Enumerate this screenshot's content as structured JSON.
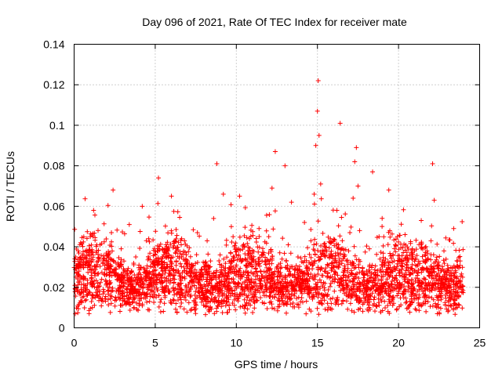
{
  "chart_data": {
    "type": "scatter",
    "title": "Day 096 of 2021, Rate Of TEC Index for receiver mate",
    "xlabel": "GPS time / hours",
    "ylabel": "ROTI / TECUs",
    "xlim": [
      0,
      25
    ],
    "ylim": [
      0,
      0.14
    ],
    "x_ticks": [
      0,
      5,
      10,
      15,
      20,
      25
    ],
    "x_tick_labels": [
      "0",
      "5",
      "10",
      "15",
      "20",
      "25"
    ],
    "y_ticks": [
      0,
      0.02,
      0.04,
      0.06,
      0.08,
      0.1,
      0.12,
      0.14
    ],
    "y_tick_labels": [
      "0",
      "0.02",
      "0.04",
      "0.06",
      "0.08",
      "0.1",
      "0.12",
      "0.14"
    ],
    "grid": true,
    "marker": "+",
    "marker_color": "#ff0000",
    "series": [
      {
        "name": "ROTI",
        "x": [
          0.05,
          0.1,
          0.2,
          0.3,
          0.4,
          0.5,
          0.6,
          0.7,
          0.8,
          0.9,
          1.0,
          1.1,
          1.2,
          1.3,
          1.4,
          1.5,
          1.6,
          1.7,
          1.8,
          1.9,
          2.0,
          2.1,
          2.2,
          2.3,
          2.4,
          2.5,
          2.6,
          2.7,
          2.8,
          2.9,
          3.0,
          3.2,
          3.4,
          3.6,
          3.8,
          4.0,
          4.2,
          4.4,
          4.6,
          4.8,
          5.0,
          5.2,
          5.4,
          5.6,
          5.8,
          6.0,
          6.2,
          6.4,
          6.6,
          6.8,
          7.0,
          7.2,
          7.4,
          7.6,
          7.8,
          8.0,
          8.2,
          8.4,
          8.6,
          8.8,
          9.0,
          9.2,
          9.4,
          9.6,
          9.8,
          10.0,
          10.2,
          10.4,
          10.6,
          10.8,
          11.0,
          11.2,
          11.4,
          11.6,
          11.8,
          12.0,
          12.2,
          12.4,
          12.6,
          12.8,
          13.0,
          13.2,
          13.4,
          13.6,
          13.8,
          14.0,
          14.2,
          14.4,
          14.6,
          14.8,
          14.9,
          15.0,
          15.05,
          15.1,
          15.2,
          15.4,
          15.6,
          15.8,
          16.0,
          16.2,
          16.4,
          16.6,
          16.8,
          17.0,
          17.2,
          17.3,
          17.4,
          17.5,
          17.6,
          17.8,
          18.0,
          18.2,
          18.4,
          18.6,
          18.8,
          19.0,
          19.2,
          19.4,
          19.6,
          19.8,
          20.0,
          20.2,
          20.4,
          20.6,
          20.8,
          21.0,
          21.2,
          21.4,
          21.6,
          21.8,
          22.0,
          22.1,
          22.2,
          22.4,
          22.6,
          22.8,
          23.0,
          23.2,
          23.4,
          23.6,
          23.8,
          23.95
        ],
        "y": [
          0.021,
          0.035,
          0.018,
          0.028,
          0.042,
          0.015,
          0.025,
          0.038,
          0.019,
          0.031,
          0.045,
          0.022,
          0.058,
          0.027,
          0.016,
          0.033,
          0.041,
          0.024,
          0.019,
          0.029,
          0.036,
          0.014,
          0.022,
          0.047,
          0.068,
          0.026,
          0.018,
          0.032,
          0.021,
          0.039,
          0.017,
          0.028,
          0.051,
          0.023,
          0.035,
          0.019,
          0.06,
          0.027,
          0.044,
          0.018,
          0.031,
          0.074,
          0.022,
          0.015,
          0.038,
          0.065,
          0.024,
          0.019,
          0.041,
          0.028,
          0.033,
          0.016,
          0.025,
          0.047,
          0.021,
          0.03,
          0.043,
          0.017,
          0.054,
          0.081,
          0.036,
          0.066,
          0.026,
          0.022,
          0.045,
          0.031,
          0.065,
          0.019,
          0.028,
          0.038,
          0.015,
          0.024,
          0.049,
          0.021,
          0.033,
          0.045,
          0.069,
          0.087,
          0.027,
          0.019,
          0.08,
          0.041,
          0.062,
          0.023,
          0.035,
          0.018,
          0.052,
          0.029,
          0.043,
          0.066,
          0.09,
          0.107,
          0.122,
          0.095,
          0.071,
          0.038,
          0.025,
          0.044,
          0.03,
          0.058,
          0.101,
          0.021,
          0.033,
          0.047,
          0.064,
          0.082,
          0.089,
          0.07,
          0.048,
          0.028,
          0.019,
          0.039,
          0.077,
          0.026,
          0.045,
          0.021,
          0.034,
          0.068,
          0.023,
          0.041,
          0.018,
          0.029,
          0.046,
          0.022,
          0.037,
          0.016,
          0.027,
          0.053,
          0.024,
          0.019,
          0.043,
          0.081,
          0.063,
          0.031,
          0.021,
          0.038,
          0.017,
          0.027,
          0.049,
          0.022,
          0.033,
          0.025
        ]
      }
    ]
  }
}
